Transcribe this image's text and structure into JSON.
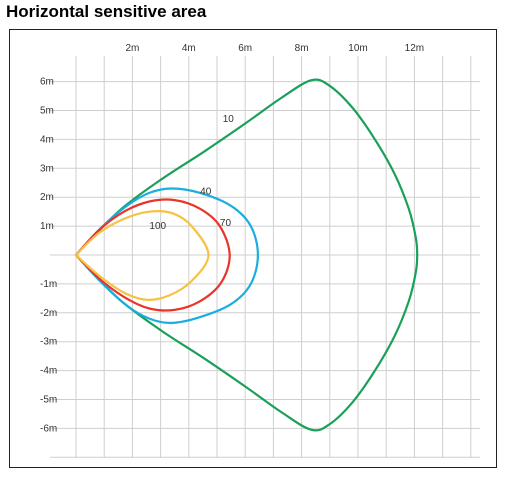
{
  "page": {
    "title": "Horizontal sensitive area"
  },
  "chart_data": {
    "type": "line",
    "title": "Horizontal sensitive area",
    "xlabel": "",
    "ylabel": "",
    "xlim": [
      0,
      14
    ],
    "ylim": [
      -7,
      7
    ],
    "grid": true,
    "legend": "none (labels placed next to curves)",
    "x_ticks": [
      {
        "value": 2,
        "label": "2m"
      },
      {
        "value": 4,
        "label": "4m"
      },
      {
        "value": 6,
        "label": "6m"
      },
      {
        "value": 8,
        "label": "8m"
      },
      {
        "value": 10,
        "label": "10m"
      },
      {
        "value": 12,
        "label": "12m"
      }
    ],
    "y_ticks": [
      {
        "value": 6,
        "label": "6m"
      },
      {
        "value": 5,
        "label": "5m"
      },
      {
        "value": 4,
        "label": "4m"
      },
      {
        "value": 3,
        "label": "3m"
      },
      {
        "value": 2,
        "label": "2m"
      },
      {
        "value": 1,
        "label": "1m"
      },
      {
        "value": -1,
        "label": "-1m"
      },
      {
        "value": -2,
        "label": "-2m"
      },
      {
        "value": -3,
        "label": "-3m"
      },
      {
        "value": -4,
        "label": "-4m"
      },
      {
        "value": -5,
        "label": "-5m"
      },
      {
        "value": -6,
        "label": "-6m"
      }
    ],
    "series": [
      {
        "name": "10",
        "color": "#1aa05a",
        "label_at": [
          5.4,
          4.7
        ],
        "points": [
          [
            0,
            0
          ],
          [
            1.5,
            1.5
          ],
          [
            3,
            2.6
          ],
          [
            4.5,
            3.55
          ],
          [
            6,
            4.55
          ],
          [
            7.3,
            5.45
          ],
          [
            8.35,
            6.05
          ],
          [
            9,
            5.85
          ],
          [
            9.8,
            5.1
          ],
          [
            10.6,
            4.0
          ],
          [
            11.3,
            2.8
          ],
          [
            11.8,
            1.6
          ],
          [
            12.05,
            0.6
          ],
          [
            12.1,
            0
          ],
          [
            12.05,
            -0.6
          ],
          [
            11.8,
            -1.6
          ],
          [
            11.3,
            -2.8
          ],
          [
            10.6,
            -4.0
          ],
          [
            9.8,
            -5.1
          ],
          [
            9.0,
            -5.85
          ],
          [
            8.35,
            -6.05
          ],
          [
            7.3,
            -5.45
          ],
          [
            6,
            -4.55
          ],
          [
            4.5,
            -3.55
          ],
          [
            3,
            -2.6
          ],
          [
            1.5,
            -1.5
          ],
          [
            0,
            0
          ]
        ]
      },
      {
        "name": "40",
        "color": "#1aaee0",
        "label_at": [
          4.6,
          2.2
        ],
        "points": [
          [
            0,
            0
          ],
          [
            0.9,
            0.95
          ],
          [
            1.8,
            1.7
          ],
          [
            2.6,
            2.15
          ],
          [
            3.4,
            2.3
          ],
          [
            4.4,
            2.15
          ],
          [
            5.5,
            1.7
          ],
          [
            6.2,
            1.0
          ],
          [
            6.45,
            0
          ],
          [
            6.2,
            -1.0
          ],
          [
            5.5,
            -1.7
          ],
          [
            4.4,
            -2.15
          ],
          [
            3.4,
            -2.35
          ],
          [
            2.6,
            -2.2
          ],
          [
            1.8,
            -1.75
          ],
          [
            0.9,
            -0.95
          ],
          [
            0,
            0
          ]
        ]
      },
      {
        "name": "70",
        "color": "#e8352a",
        "label_at": [
          5.3,
          1.1
        ],
        "points": [
          [
            0,
            0
          ],
          [
            0.8,
            0.85
          ],
          [
            1.7,
            1.5
          ],
          [
            2.6,
            1.85
          ],
          [
            3.5,
            1.9
          ],
          [
            4.4,
            1.6
          ],
          [
            5.1,
            1.0
          ],
          [
            5.45,
            0
          ],
          [
            5.15,
            -0.95
          ],
          [
            4.4,
            -1.6
          ],
          [
            3.5,
            -1.9
          ],
          [
            2.6,
            -1.85
          ],
          [
            1.7,
            -1.45
          ],
          [
            0.8,
            -0.8
          ],
          [
            0,
            0
          ]
        ]
      },
      {
        "name": "100",
        "color": "#f5c242",
        "label_at": [
          2.9,
          1.0
        ],
        "points": [
          [
            0,
            0
          ],
          [
            0.8,
            0.75
          ],
          [
            1.7,
            1.25
          ],
          [
            2.6,
            1.5
          ],
          [
            3.4,
            1.45
          ],
          [
            4.1,
            1.0
          ],
          [
            4.7,
            0
          ],
          [
            4.1,
            -0.9
          ],
          [
            3.3,
            -1.4
          ],
          [
            2.5,
            -1.55
          ],
          [
            1.7,
            -1.3
          ],
          [
            0.8,
            -0.7
          ],
          [
            0,
            0
          ]
        ]
      }
    ]
  }
}
